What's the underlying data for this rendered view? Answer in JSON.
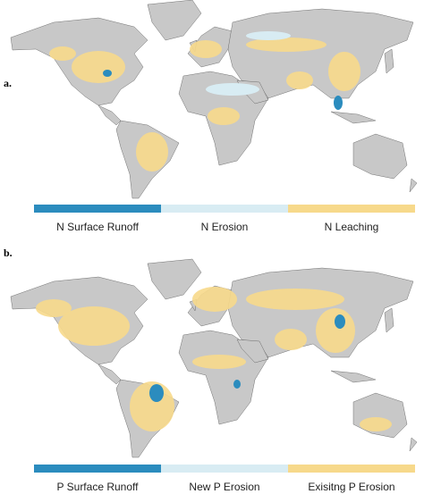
{
  "panels": [
    {
      "label": "a.",
      "legend": [
        {
          "name": "N Surface Runoff",
          "color": "#2b8cbe"
        },
        {
          "name": "N Erosion",
          "color": "#d8ecf3"
        },
        {
          "name": "N Leaching",
          "color": "#f7d98b"
        }
      ]
    },
    {
      "label": "b.",
      "legend": [
        {
          "name": "P Surface Runoff",
          "color": "#2b8cbe"
        },
        {
          "name": "New P Erosion",
          "color": "#d8ecf3"
        },
        {
          "name": "Exisitng P Erosion",
          "color": "#f7d98b"
        }
      ]
    }
  ]
}
